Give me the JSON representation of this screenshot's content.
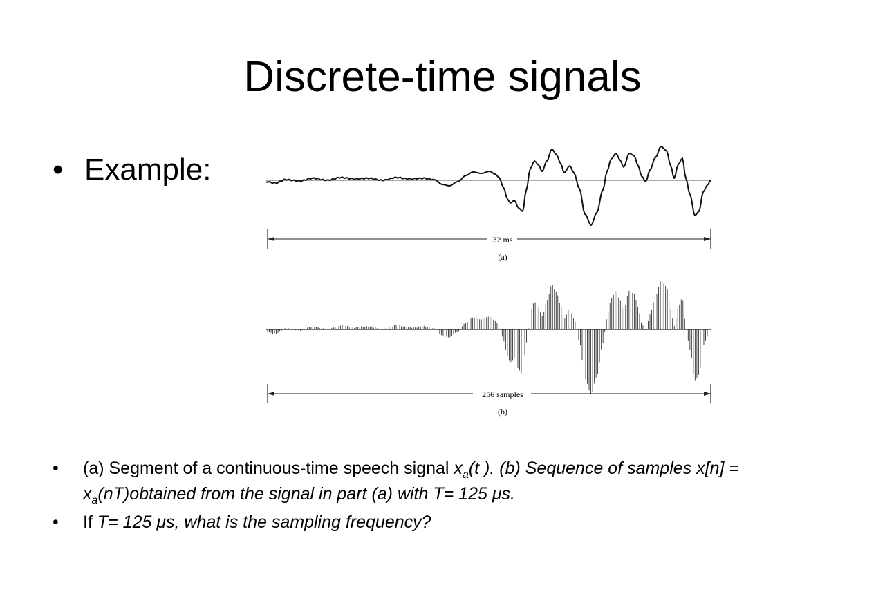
{
  "title": "Discrete-time signals",
  "example": {
    "bullet": "•",
    "label": "Example:"
  },
  "figure": {
    "panel_a": {
      "span_label": "32 ms",
      "caption": "(a)"
    },
    "panel_b": {
      "span_label": "256 samples",
      "caption": "(b)"
    }
  },
  "notes": {
    "n1": {
      "bullet": "•",
      "t1": "(a) Segment of a continuous-time speech signal ",
      "x": "x",
      "a": "a",
      "t2": "(t ). (b) Sequence of samples x[n] =",
      "t3": "(nT)obtained from the signal in part (a) with T= 125 μs."
    },
    "n2": {
      "bullet": "•",
      "t1": "If ",
      "t2": "T= 125 μs, what is the sampling frequency?"
    }
  }
}
